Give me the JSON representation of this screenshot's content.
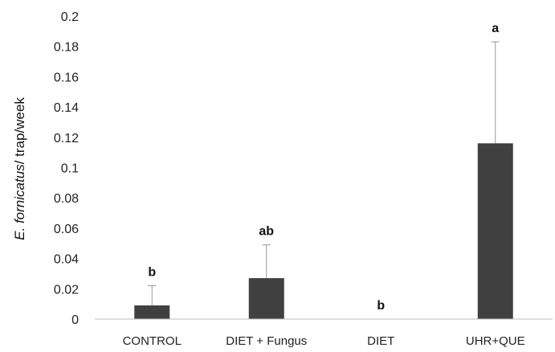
{
  "chart_data": {
    "type": "bar",
    "categories": [
      "CONTROL",
      "DIET + Fungus",
      "DIET",
      "UHR+QUE"
    ],
    "values": [
      0.009,
      0.027,
      0.0,
      0.116
    ],
    "error_upper": [
      0.022,
      0.049,
      0.0,
      0.183
    ],
    "significance_labels": [
      "b",
      "ab",
      "b",
      "a"
    ],
    "ylabel_italic": "E. fornicatus",
    "ylabel_rest": "/ trap/week",
    "ylim": [
      0,
      0.2
    ],
    "yticks": [
      0,
      0.02,
      0.04,
      0.06,
      0.08,
      0.1,
      0.12,
      0.14,
      0.16,
      0.18,
      0.2
    ],
    "ytick_labels": [
      "0",
      "0.02",
      "0.04",
      "0.06",
      "0.08",
      "0.1",
      "0.12",
      "0.14",
      "0.16",
      "0.18",
      "0.2"
    ],
    "grid": false,
    "bar_color": "#404040",
    "error_bar_color": "#999999"
  }
}
